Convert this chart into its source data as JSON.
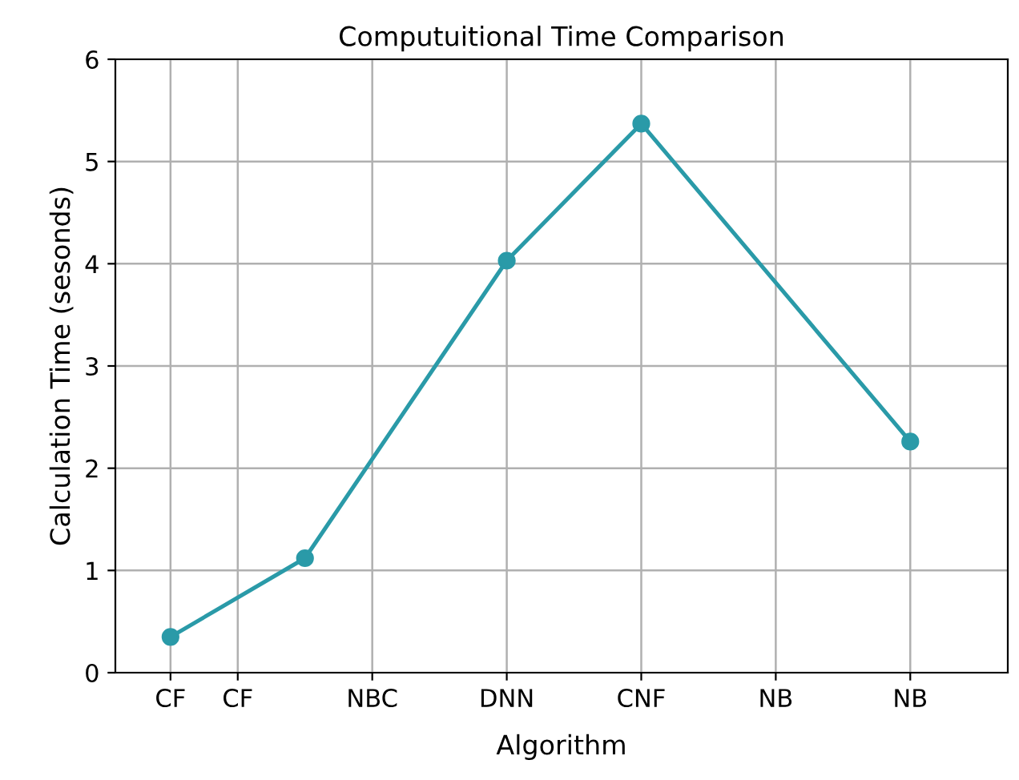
{
  "chart_data": {
    "type": "line",
    "title": "Computuitional Time Comparison",
    "xlabel": "Algorithm",
    "ylabel": "Calculation Time (sesonds)",
    "categories": [
      "CF",
      "CF",
      null,
      "NBC",
      null,
      "DNN",
      null,
      "CNF",
      null,
      "NB",
      null,
      "NB"
    ],
    "series": [
      {
        "color": "#2a9aa8",
        "values": [
          0.35,
          null,
          1.12,
          null,
          null,
          4.03,
          null,
          5.37,
          null,
          null,
          null,
          2.26
        ]
      }
    ],
    "ylim": [
      0,
      6
    ],
    "yticks": [
      0,
      1,
      2,
      3,
      4,
      5,
      6
    ],
    "grid": true,
    "marker": "circle",
    "line_style": "solid"
  }
}
